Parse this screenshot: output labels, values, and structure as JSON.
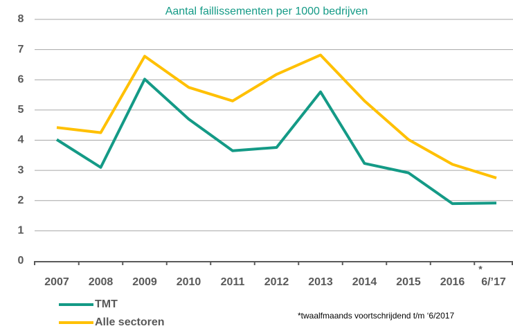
{
  "chart_data": {
    "type": "line",
    "title": "Aantal faillissementen per 1000 bedrijven",
    "categories": [
      "2007",
      "2008",
      "2009",
      "2010",
      "2011",
      "2012",
      "2013",
      "2014",
      "2015",
      "2016",
      "6/’17"
    ],
    "series": [
      {
        "name": "TMT",
        "color": "#149a86",
        "values": [
          4.02,
          3.1,
          6.02,
          4.7,
          3.65,
          3.76,
          5.6,
          3.23,
          2.92,
          1.9,
          1.92
        ]
      },
      {
        "name": "Alle sectoren",
        "color": "#ffc000",
        "values": [
          4.42,
          4.25,
          6.78,
          5.75,
          5.3,
          6.18,
          6.82,
          5.3,
          4.02,
          3.2,
          2.75
        ]
      }
    ],
    "ylim": [
      0,
      8
    ],
    "yticks": [
      0,
      1,
      2,
      3,
      4,
      5,
      6,
      7,
      8
    ],
    "grid": true,
    "annotations": [
      "*",
      "*twaalfmaands voortschrijdend t/m ‘6/2017"
    ]
  }
}
